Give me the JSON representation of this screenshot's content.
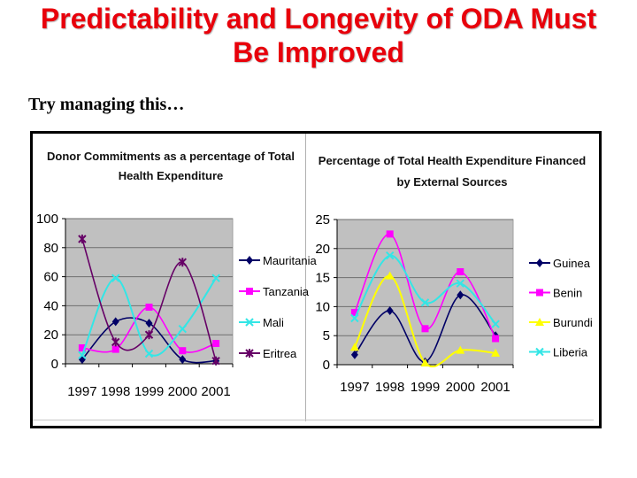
{
  "slide": {
    "title_line1": "Predictability and Longevity of ODA Must",
    "title_line2": "Be Improved",
    "subtitle": "Try managing this…",
    "title_color": "#e8000b"
  },
  "chart_data": [
    {
      "type": "line",
      "title_line1": "Donor Commitments as a percentage of Total",
      "title_line2": "Health Expenditure",
      "xlabel": "",
      "ylabel": "",
      "categories": [
        "1997",
        "1998",
        "1999",
        "2000",
        "2001"
      ],
      "ylim": [
        0,
        100
      ],
      "yticks": [
        "0",
        "20",
        "40",
        "60",
        "80",
        "100"
      ],
      "grid": true,
      "plot_background": "#c0c0c0",
      "legend_position": "right",
      "series": [
        {
          "name": "Mauritania",
          "color": "#000066",
          "marker": "diamond",
          "values": [
            3,
            29,
            28,
            3,
            2
          ]
        },
        {
          "name": "Tanzania",
          "color": "#ff00ff",
          "marker": "square",
          "values": [
            11,
            10,
            39,
            9,
            14
          ]
        },
        {
          "name": "Mali",
          "color": "#33e6e6",
          "marker": "x",
          "values": [
            6,
            59,
            7,
            24,
            59
          ]
        },
        {
          "name": "Eritrea",
          "color": "#660066",
          "marker": "star",
          "values": [
            86,
            15,
            20,
            70,
            2
          ]
        }
      ]
    },
    {
      "type": "line",
      "title_line1": "Percentage of Total Health Expenditure Financed",
      "title_line2": "by External Sources",
      "xlabel": "",
      "ylabel": "",
      "categories": [
        "1997",
        "1998",
        "1999",
        "2000",
        "2001"
      ],
      "ylim": [
        0,
        25
      ],
      "yticks": [
        "0",
        "5",
        "10",
        "15",
        "20",
        "25"
      ],
      "grid": true,
      "plot_background": "#c0c0c0",
      "legend_position": "right",
      "series": [
        {
          "name": "Guinea",
          "color": "#000066",
          "marker": "diamond",
          "values": [
            1.7,
            9.3,
            0.5,
            12,
            5
          ]
        },
        {
          "name": "Benin",
          "color": "#ff00ff",
          "marker": "square",
          "values": [
            9,
            22.5,
            6.2,
            16,
            4.5
          ]
        },
        {
          "name": "Burundi",
          "color": "#ffff00",
          "marker": "triangle",
          "values": [
            3,
            15.3,
            0.3,
            2.5,
            2
          ]
        },
        {
          "name": "Liberia",
          "color": "#33e6e6",
          "marker": "x",
          "values": [
            8,
            18.8,
            10.7,
            14,
            7
          ]
        }
      ]
    }
  ]
}
